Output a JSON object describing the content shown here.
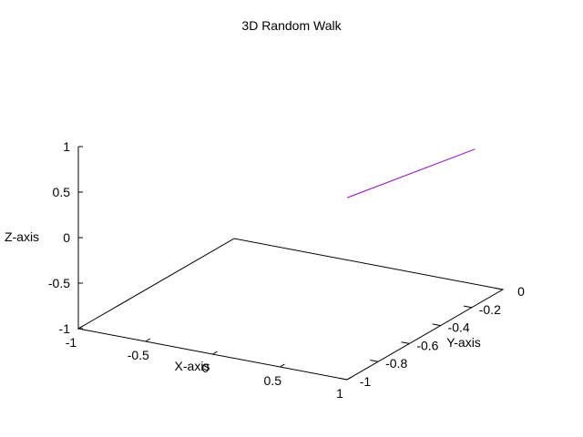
{
  "chart_data": {
    "type": "line",
    "title": "3D Random Walk",
    "xlabel": "X-axis",
    "ylabel": "Y-axis",
    "zlabel": "Z-axis",
    "xlim": [
      -1,
      1
    ],
    "ylim": [
      -1,
      0
    ],
    "zlim": [
      -1,
      1
    ],
    "x_ticks": [
      -1,
      -0.5,
      0,
      0.5,
      1
    ],
    "x_tick_labels": [
      "-1",
      "-0.5",
      "0",
      "0.5",
      "1"
    ],
    "y_ticks": [
      -1,
      -0.8,
      -0.6,
      -0.4,
      -0.2,
      0
    ],
    "y_tick_labels": [
      "-1",
      "-0.8",
      "-0.6",
      "-0.4",
      "-0.2",
      "0"
    ],
    "z_ticks": [
      -1,
      -0.5,
      0,
      0.5,
      1
    ],
    "z_tick_labels": [
      "-1",
      "-0.5",
      "0",
      "0.5",
      "1"
    ],
    "grid": false,
    "series": [
      {
        "color": "#9400d3",
        "points": [
          {
            "x": -0.1,
            "y": -0.05,
            "z": -0.25
          },
          {
            "x": 0.85,
            "y": -0.05,
            "z": 0.55
          }
        ]
      }
    ]
  }
}
